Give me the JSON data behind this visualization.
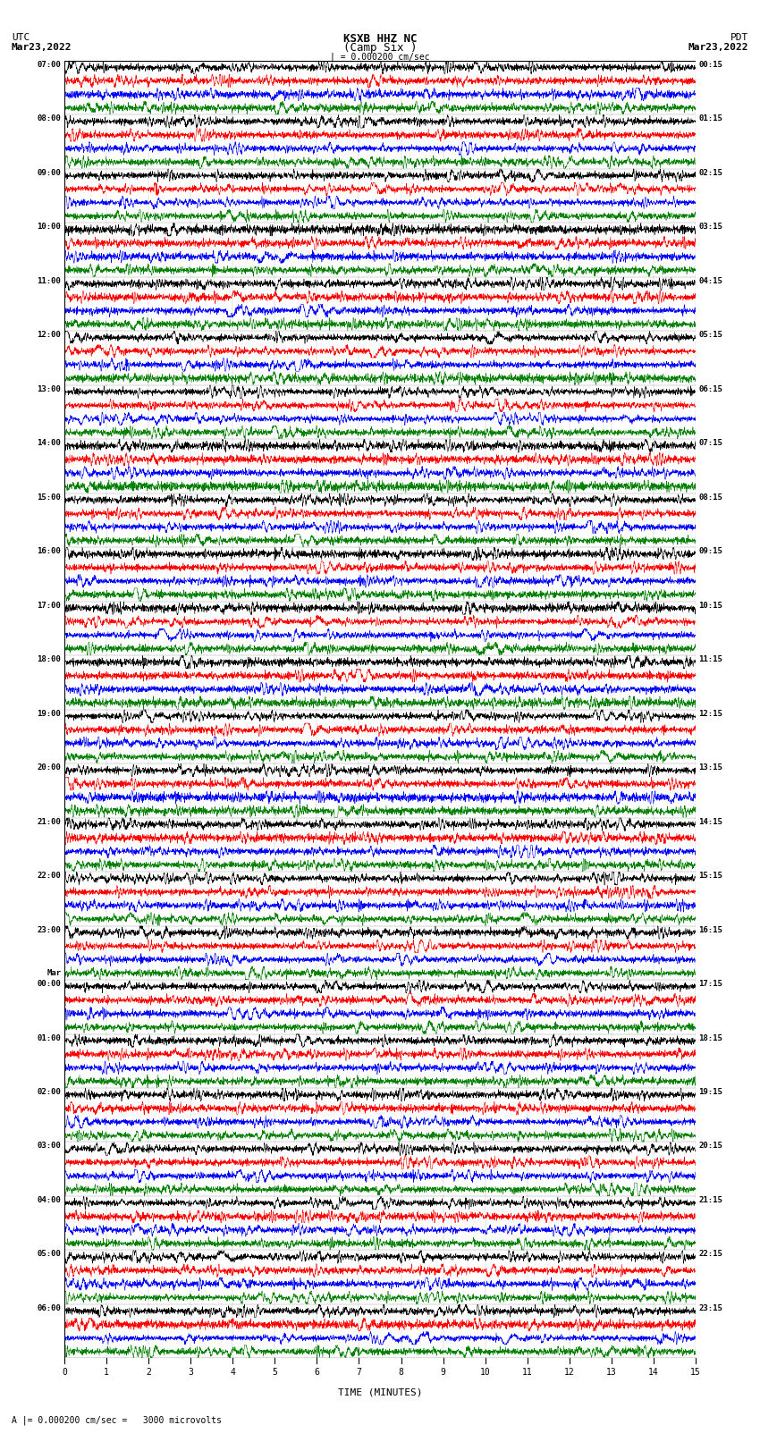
{
  "title": "KSXB HHZ NC",
  "subtitle": "(Camp Six )",
  "left_label_top": "UTC",
  "left_label_date": "Mar23,2022",
  "right_label_top": "PDT",
  "right_label_date": "Mar23,2022",
  "scale_label": "A |= 0.000200 cm/sec =   3000 microvolts",
  "scale_bar_label": "| = 0.000200 cm/sec",
  "xlabel": "TIME (MINUTES)",
  "bg_color": "#ffffff",
  "trace_colors": [
    "black",
    "red",
    "blue",
    "green"
  ],
  "minutes": 15,
  "hour_labels_left": [
    "07:00",
    "08:00",
    "09:00",
    "10:00",
    "11:00",
    "12:00",
    "13:00",
    "14:00",
    "15:00",
    "16:00",
    "17:00",
    "18:00",
    "19:00",
    "20:00",
    "21:00",
    "22:00",
    "23:00",
    "00:00",
    "01:00",
    "02:00",
    "03:00",
    "04:00",
    "05:00",
    "06:00"
  ],
  "hour_labels_right": [
    "00:15",
    "01:15",
    "02:15",
    "03:15",
    "04:15",
    "05:15",
    "06:15",
    "07:15",
    "08:15",
    "09:15",
    "10:15",
    "11:15",
    "12:15",
    "13:15",
    "14:15",
    "15:15",
    "16:15",
    "17:15",
    "18:15",
    "19:15",
    "20:15",
    "21:15",
    "22:15",
    "23:15"
  ],
  "mar_label_index": 17,
  "figsize": [
    8.5,
    16.13
  ],
  "dpi": 100
}
